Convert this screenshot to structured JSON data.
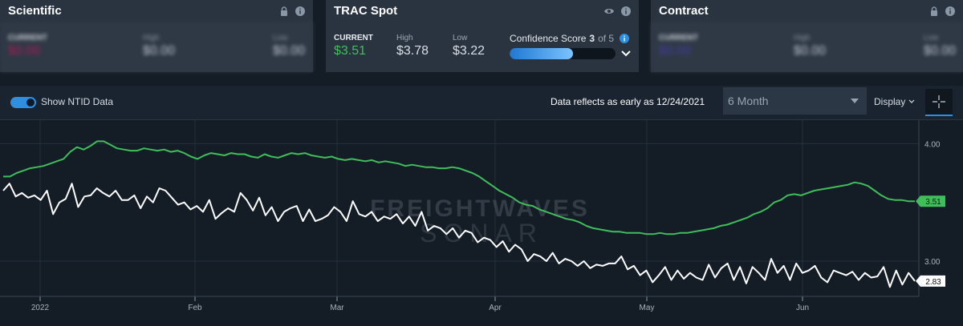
{
  "cards": [
    {
      "title": "Scientific",
      "current_label": "CURRENT",
      "current_value": "$0.00",
      "high_label": "High",
      "high_value": "$0.00",
      "low_label": "Low",
      "low_value": "$0.00"
    },
    {
      "title": "TRAC Spot",
      "current_label": "CURRENT",
      "current_value": "$3.51",
      "high_label": "High",
      "high_value": "$3.78",
      "low_label": "Low",
      "low_value": "$3.22",
      "confidence_label": "Confidence Score",
      "confidence_score": "3",
      "confidence_of": "of 5",
      "confidence_fraction": 0.6
    },
    {
      "title": "Contract",
      "current_label": "CURRENT",
      "current_value": "$0.00",
      "high_label": "High",
      "high_value": "$0.00",
      "low_label": "Low",
      "low_value": "$0.00"
    }
  ],
  "toolbar": {
    "toggle_label": "Show NTID Data",
    "data_note": "Data reflects as early as 12/24/2021",
    "period_value": "6 Month",
    "display_label": "Display"
  },
  "colors": {
    "green": "#3fbf5a",
    "white": "#ffffff",
    "accent": "#2e8fe0",
    "current_pink": "#c2185b",
    "current_purple": "#4b3bb0"
  },
  "watermark": {
    "line1": "FREIGHTWAVES",
    "line2": "SONAR"
  },
  "chart_data": {
    "type": "line",
    "x_tick_labels": [
      "2022",
      "Feb",
      "Mar",
      "Apr",
      "May",
      "Jun"
    ],
    "y_tick_labels": [
      "4.00",
      "3.00"
    ],
    "ylim": [
      2.7,
      4.2
    ],
    "grid": true,
    "last_value_labels": [
      "3.51",
      "2.83"
    ],
    "series": [
      {
        "color": "#3fbf5a",
        "values": [
          3.72,
          3.72,
          3.75,
          3.77,
          3.79,
          3.8,
          3.81,
          3.83,
          3.85,
          3.87,
          3.93,
          3.97,
          3.95,
          3.98,
          4.02,
          4.02,
          3.99,
          3.96,
          3.95,
          3.94,
          3.94,
          3.96,
          3.95,
          3.94,
          3.95,
          3.93,
          3.94,
          3.92,
          3.89,
          3.87,
          3.9,
          3.92,
          3.91,
          3.9,
          3.92,
          3.91,
          3.91,
          3.89,
          3.88,
          3.91,
          3.89,
          3.88,
          3.9,
          3.92,
          3.91,
          3.92,
          3.9,
          3.89,
          3.88,
          3.89,
          3.87,
          3.86,
          3.87,
          3.86,
          3.85,
          3.86,
          3.84,
          3.85,
          3.84,
          3.83,
          3.81,
          3.82,
          3.81,
          3.8,
          3.8,
          3.79,
          3.79,
          3.8,
          3.79,
          3.77,
          3.75,
          3.72,
          3.68,
          3.64,
          3.6,
          3.57,
          3.54,
          3.5,
          3.48,
          3.47,
          3.44,
          3.42,
          3.4,
          3.38,
          3.36,
          3.35,
          3.33,
          3.3,
          3.28,
          3.27,
          3.26,
          3.25,
          3.25,
          3.24,
          3.24,
          3.24,
          3.23,
          3.23,
          3.24,
          3.23,
          3.23,
          3.24,
          3.24,
          3.25,
          3.26,
          3.27,
          3.28,
          3.3,
          3.31,
          3.33,
          3.35,
          3.37,
          3.4,
          3.42,
          3.45,
          3.5,
          3.52,
          3.56,
          3.57,
          3.56,
          3.58,
          3.6,
          3.61,
          3.62,
          3.63,
          3.64,
          3.65,
          3.67,
          3.66,
          3.64,
          3.6,
          3.56,
          3.53,
          3.52,
          3.52,
          3.51,
          3.51
        ]
      },
      {
        "color": "#ffffff",
        "values": [
          3.6,
          3.66,
          3.55,
          3.58,
          3.54,
          3.56,
          3.52,
          3.6,
          3.4,
          3.5,
          3.53,
          3.66,
          3.46,
          3.55,
          3.56,
          3.62,
          3.58,
          3.55,
          3.6,
          3.52,
          3.52,
          3.56,
          3.45,
          3.55,
          3.5,
          3.62,
          3.6,
          3.54,
          3.48,
          3.5,
          3.44,
          3.47,
          3.42,
          3.52,
          3.36,
          3.41,
          3.45,
          3.42,
          3.58,
          3.52,
          3.43,
          3.54,
          3.39,
          3.46,
          3.34,
          3.42,
          3.45,
          3.47,
          3.34,
          3.44,
          3.34,
          3.36,
          3.39,
          3.46,
          3.42,
          3.34,
          3.51,
          3.4,
          3.38,
          3.42,
          3.34,
          3.38,
          3.36,
          3.4,
          3.32,
          3.38,
          3.3,
          3.42,
          3.26,
          3.3,
          3.28,
          3.23,
          3.28,
          3.2,
          3.26,
          3.24,
          3.16,
          3.2,
          3.18,
          3.12,
          3.17,
          3.08,
          3.14,
          3.1,
          3.0,
          3.06,
          3.04,
          3.0,
          3.07,
          2.98,
          3.02,
          3.0,
          2.96,
          3.0,
          2.94,
          2.97,
          2.96,
          2.98,
          2.98,
          3.04,
          2.93,
          2.96,
          2.88,
          2.92,
          2.82,
          2.88,
          2.95,
          2.84,
          2.92,
          2.85,
          2.9,
          2.86,
          2.84,
          2.97,
          2.86,
          2.94,
          2.98,
          2.84,
          2.95,
          2.81,
          2.95,
          2.9,
          2.84,
          3.02,
          2.9,
          2.96,
          2.84,
          2.98,
          2.9,
          2.92,
          2.96,
          2.86,
          2.82,
          2.92,
          2.9,
          2.88,
          2.91,
          2.84,
          2.9,
          2.86,
          2.87,
          2.95,
          2.78,
          2.92,
          2.8,
          2.9,
          2.83
        ]
      }
    ]
  }
}
